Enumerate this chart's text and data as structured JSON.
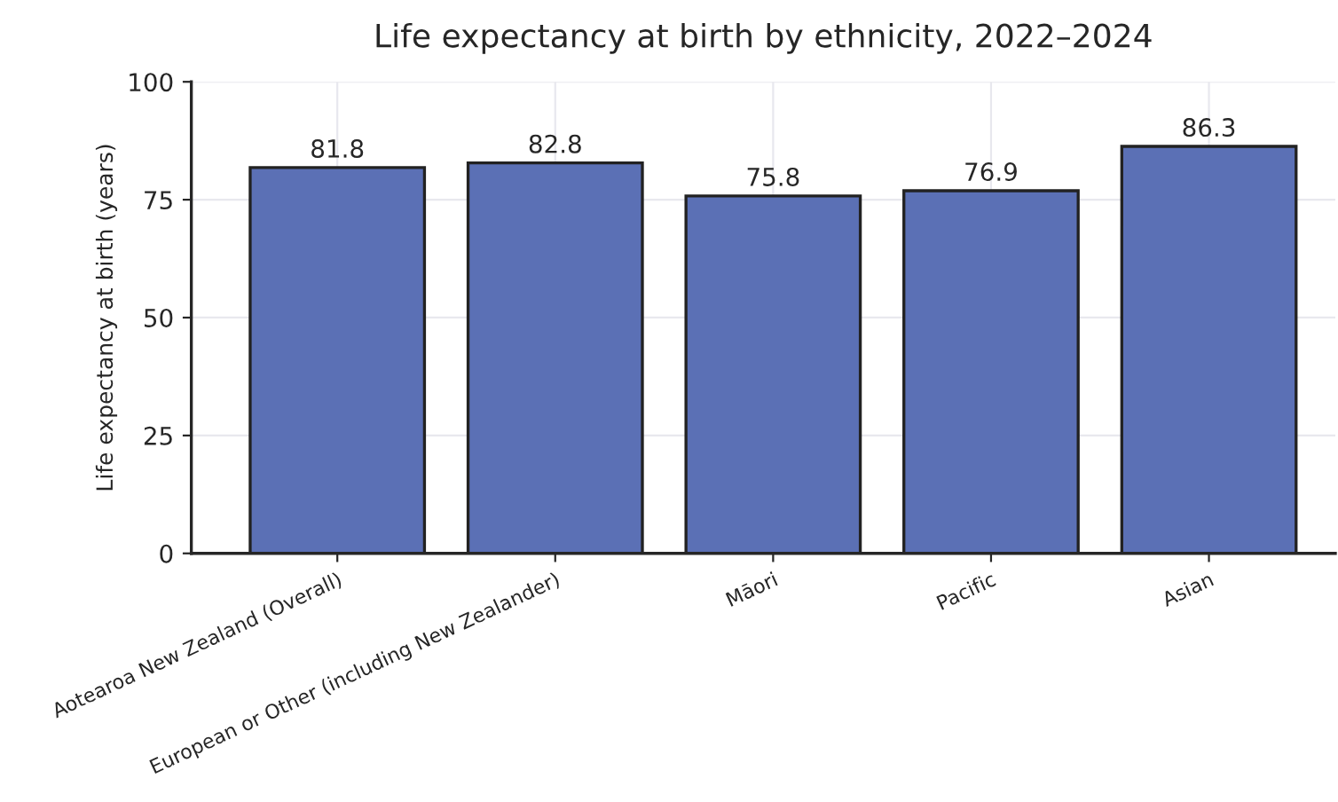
{
  "chart_data": {
    "type": "bar",
    "title": "Life expectancy at birth by ethnicity, 2022–2024",
    "ylabel": "Life expectancy at birth (years)",
    "categories": [
      "Aotearoa New Zealand (Overall)",
      "European or Other (including New Zealander)",
      "Māori",
      "Pacific",
      "Asian"
    ],
    "values": [
      81.8,
      82.8,
      75.8,
      76.9,
      86.3
    ],
    "color": "#5b70b5",
    "ylim": [
      0,
      100
    ],
    "yticks": [
      0,
      25,
      50,
      75,
      100
    ],
    "grid": true,
    "data_labels": true
  }
}
